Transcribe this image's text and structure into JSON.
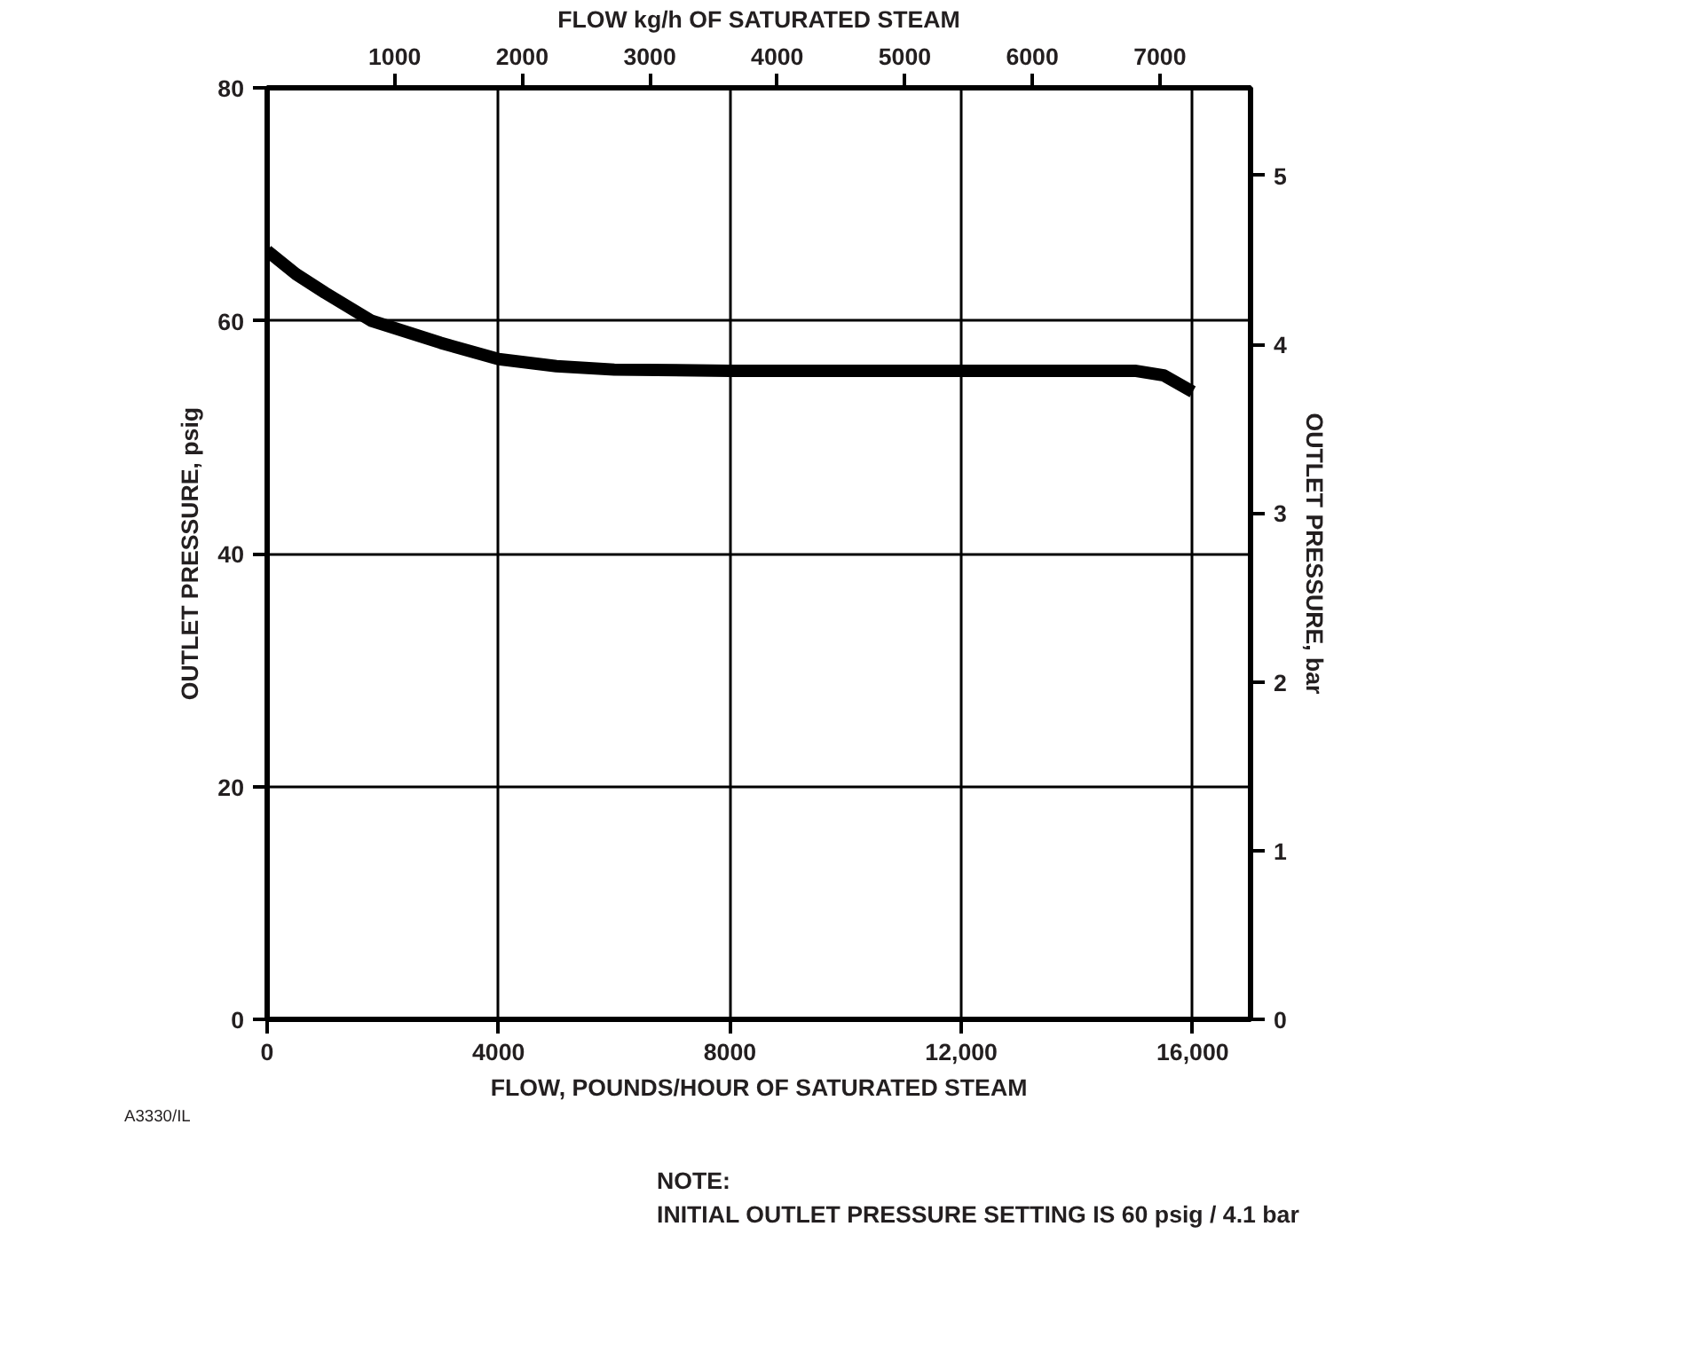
{
  "chart_data": {
    "type": "line",
    "xlabel": "FLOW, POUNDS/HOUR OF SATURATED STEAM",
    "ylabel": "OUTLET PRESSURE, psig",
    "y2label": "OUTLET PRESSURE, bar",
    "x2label": "FLOW kg/h OF SATURATED STEAM",
    "x": [
      0,
      500,
      1000,
      1800,
      3000,
      4000,
      5000,
      6000,
      8000,
      12000,
      15000,
      15500,
      16000
    ],
    "series": [
      {
        "color": "#000000",
        "values": [
          66,
          64,
          62.4,
          60,
          58.1,
          56.7,
          56.1,
          55.8,
          55.7,
          55.7,
          55.7,
          55.3,
          53.9
        ]
      }
    ],
    "xlim": [
      0,
      17000
    ],
    "xticks": [
      0,
      4000,
      8000,
      {
        "value": 12000,
        "label": "12,000"
      },
      {
        "value": 16000,
        "label": "16,000"
      }
    ],
    "ylim": [
      0,
      80
    ],
    "yticks": [
      0,
      20,
      40,
      60,
      80
    ],
    "x2lim": [
      0,
      7711
    ],
    "x2ticks": [
      1000,
      2000,
      3000,
      4000,
      5000,
      6000,
      7000
    ],
    "y2lim": [
      0,
      5.52
    ],
    "y2ticks": [
      0,
      1,
      2,
      3,
      4,
      5
    ],
    "grid": true,
    "line_style": "solid",
    "marker": "none",
    "annotations": [
      "A3330/IL",
      "NOTE:",
      "INITIAL OUTLET PRESSURE SETTING IS 60 psig / 4.1 bar"
    ]
  }
}
